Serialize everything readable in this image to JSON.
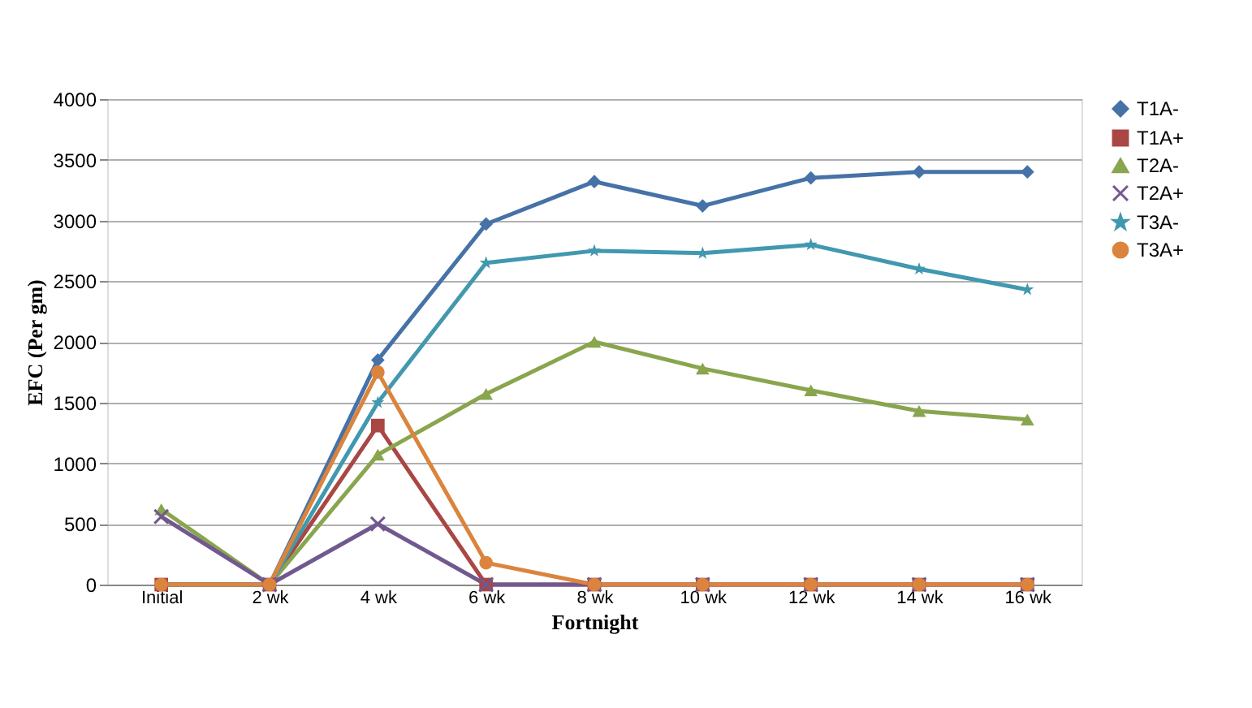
{
  "chart_data": {
    "type": "line",
    "xlabel": "Fortnight",
    "ylabel": "EFC (Per gm)",
    "categories": [
      "Initial",
      "2 wk",
      "4 wk",
      "6 wk",
      "8 wk",
      "10 wk",
      "12 wk",
      "14 wk",
      "16 wk"
    ],
    "ylim": [
      0,
      4000
    ],
    "yticks": [
      0,
      500,
      1000,
      1500,
      2000,
      2500,
      3000,
      3500,
      4000
    ],
    "grid": "y",
    "legend": "right",
    "line_style": "solid",
    "series": [
      {
        "name": "T1A-",
        "color": "#4572a7",
        "marker": "diamond",
        "values": [
          0,
          0,
          1850,
          2970,
          3320,
          3120,
          3350,
          3400,
          3400
        ]
      },
      {
        "name": "T1A+",
        "color": "#aa4643",
        "marker": "square",
        "values": [
          0,
          0,
          1310,
          0,
          0,
          0,
          0,
          0,
          0
        ]
      },
      {
        "name": "T2A-",
        "color": "#89a54e",
        "marker": "triangle",
        "values": [
          620,
          0,
          1070,
          1570,
          2000,
          1780,
          1600,
          1430,
          1360
        ]
      },
      {
        "name": "T2A+",
        "color": "#71588f",
        "marker": "cross",
        "values": [
          560,
          0,
          500,
          0,
          0,
          0,
          0,
          0,
          0
        ]
      },
      {
        "name": "T3A-",
        "color": "#4198af",
        "marker": "star",
        "values": [
          0,
          0,
          1500,
          2650,
          2750,
          2730,
          2800,
          2600,
          2430
        ]
      },
      {
        "name": "T3A+",
        "color": "#db843d",
        "marker": "circle",
        "values": [
          0,
          0,
          1750,
          180,
          0,
          0,
          0,
          0,
          0
        ]
      }
    ]
  }
}
